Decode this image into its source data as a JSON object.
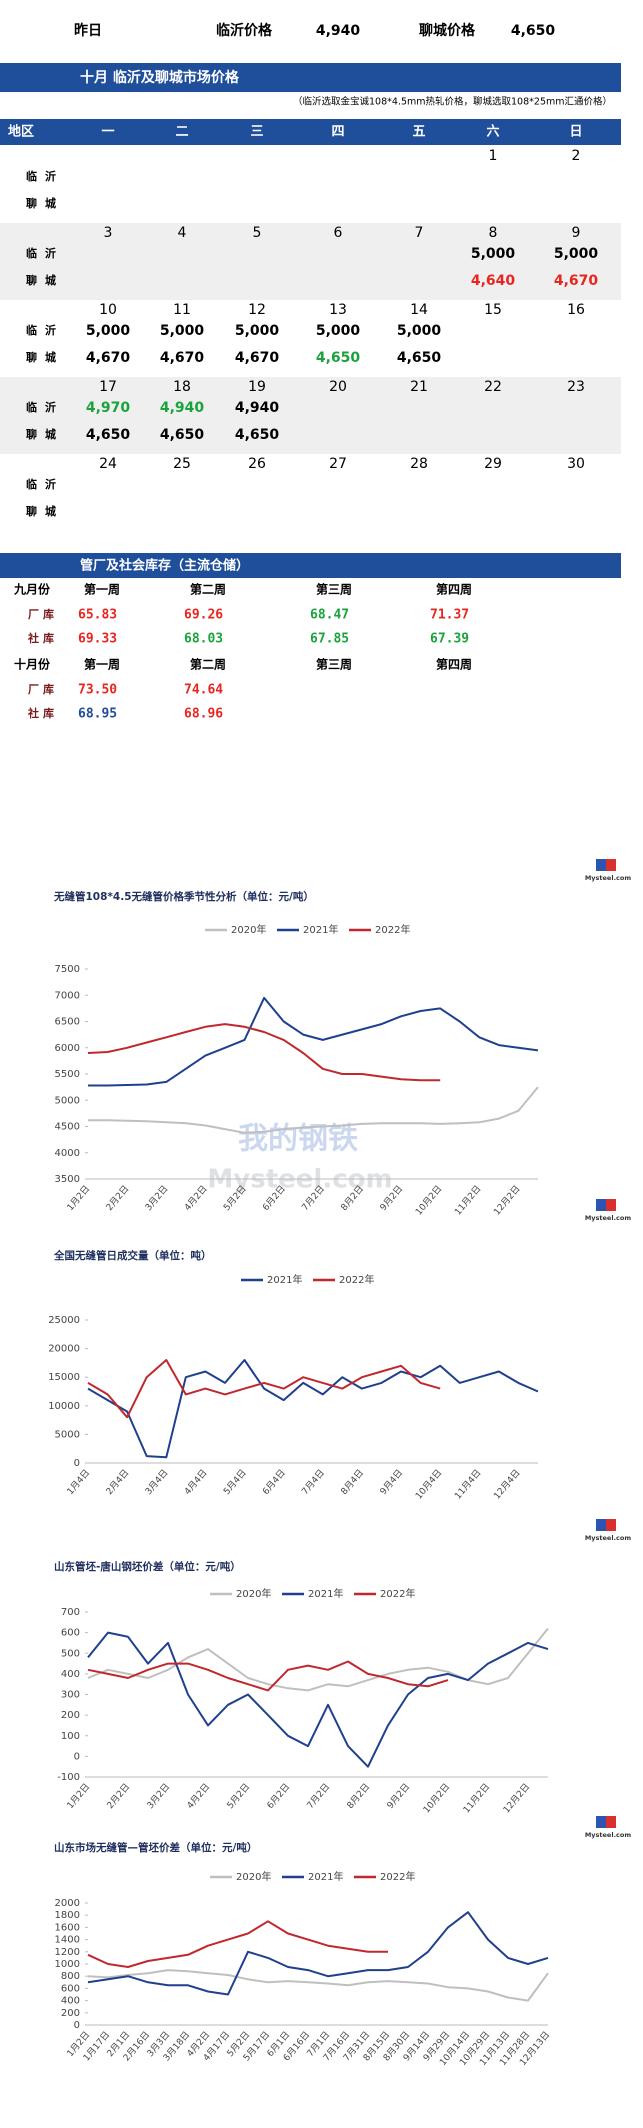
{
  "header": {
    "cells": [
      "昨日",
      "临沂价格",
      "4,940",
      "聊城价格",
      "4,650"
    ]
  },
  "calendar": {
    "title": "十月  临沂及聊城市场价格",
    "note": "（临沂选取金宝诚108*4.5mm热轧价格，聊城选取108*25mm汇通价格）",
    "columns": [
      "地区",
      "一",
      "二",
      "三",
      "四",
      "五",
      "六",
      "日"
    ],
    "weeks": [
      {
        "days": [
          null,
          null,
          null,
          null,
          null,
          1,
          2
        ],
        "rows": [
          {
            "region": "临沂",
            "cells": [
              null,
              null,
              null,
              null,
              null,
              null,
              null
            ]
          },
          {
            "region": "聊城",
            "cells": [
              null,
              null,
              null,
              null,
              null,
              null,
              null
            ]
          }
        ]
      },
      {
        "days": [
          3,
          4,
          5,
          6,
          7,
          8,
          9
        ],
        "rows": [
          {
            "region": "临沂",
            "cells": [
              null,
              null,
              null,
              null,
              null,
              {
                "text": "5,000",
                "color": "#000000"
              },
              {
                "text": "5,000",
                "color": "#000000"
              }
            ]
          },
          {
            "region": "聊城",
            "cells": [
              null,
              null,
              null,
              null,
              null,
              {
                "text": "4,640",
                "color": "#e8251f"
              },
              {
                "text": "4,670",
                "color": "#e8251f"
              }
            ]
          }
        ]
      },
      {
        "days": [
          10,
          11,
          12,
          13,
          14,
          15,
          16
        ],
        "rows": [
          {
            "region": "临沂",
            "cells": [
              {
                "text": "5,000",
                "color": "#000000"
              },
              {
                "text": "5,000",
                "color": "#000000"
              },
              {
                "text": "5,000",
                "color": "#000000"
              },
              {
                "text": "5,000",
                "color": "#000000"
              },
              {
                "text": "5,000",
                "color": "#000000"
              },
              null,
              null
            ]
          },
          {
            "region": "聊城",
            "cells": [
              {
                "text": "4,670",
                "color": "#000000"
              },
              {
                "text": "4,670",
                "color": "#000000"
              },
              {
                "text": "4,670",
                "color": "#000000"
              },
              {
                "text": "4,650",
                "color": "#1aa33c"
              },
              {
                "text": "4,650",
                "color": "#000000"
              },
              null,
              null
            ]
          }
        ]
      },
      {
        "days": [
          17,
          18,
          19,
          20,
          21,
          22,
          23
        ],
        "rows": [
          {
            "region": "临沂",
            "cells": [
              {
                "text": "4,970",
                "color": "#1aa33c"
              },
              {
                "text": "4,940",
                "color": "#1aa33c"
              },
              {
                "text": "4,940",
                "color": "#000000"
              },
              null,
              null,
              null,
              null
            ]
          },
          {
            "region": "聊城",
            "cells": [
              {
                "text": "4,650",
                "color": "#000000"
              },
              {
                "text": "4,650",
                "color": "#000000"
              },
              {
                "text": "4,650",
                "color": "#000000"
              },
              null,
              null,
              null,
              null
            ]
          }
        ]
      },
      {
        "days": [
          24,
          25,
          26,
          27,
          28,
          29,
          30
        ],
        "rows": [
          {
            "region": "临沂",
            "cells": [
              null,
              null,
              null,
              null,
              null,
              null,
              null
            ]
          },
          {
            "region": "聊城",
            "cells": [
              null,
              null,
              null,
              null,
              null,
              null,
              null
            ]
          }
        ]
      }
    ]
  },
  "inventory": {
    "title": "管厂及社会库存（主流仓储）",
    "months": [
      {
        "label": "九月份",
        "weeks": [
          "第一周",
          "第二周",
          "第三周",
          "第四周"
        ],
        "rows": [
          {
            "name": "厂库",
            "cells": [
              {
                "text": "65.83",
                "color": "#e8251f"
              },
              {
                "text": "69.26",
                "color": "#e8251f"
              },
              {
                "text": "68.47",
                "color": "#1aa33c"
              },
              {
                "text": "71.37",
                "color": "#e8251f"
              }
            ]
          },
          {
            "name": "社库",
            "cells": [
              {
                "text": "69.33",
                "color": "#e8251f"
              },
              {
                "text": "68.03",
                "color": "#1aa33c"
              },
              {
                "text": "67.85",
                "color": "#1aa33c"
              },
              {
                "text": "67.39",
                "color": "#1aa33c"
              }
            ]
          }
        ]
      },
      {
        "label": "十月份",
        "weeks": [
          "第一周",
          "第二周",
          "第三周",
          "第四周"
        ],
        "rows": [
          {
            "name": "厂库",
            "cells": [
              {
                "text": "73.50",
                "color": "#e8251f"
              },
              {
                "text": "74.64",
                "color": "#e8251f"
              },
              null,
              null
            ]
          },
          {
            "name": "社库",
            "cells": [
              {
                "text": "68.95",
                "color": "#1f4e9a"
              },
              {
                "text": "68.96",
                "color": "#e8251f"
              },
              null,
              null
            ]
          }
        ]
      }
    ]
  },
  "logo_text": "Mysteel.com",
  "watermark_cn": "我的钢铁",
  "watermark": "Mysteel.com",
  "chart_data": [
    {
      "type": "line",
      "title": "无缝管108*4.5无缝管价格季节性分析（单位：元/吨）",
      "categories": [
        "1月2日",
        null,
        "2月2日",
        null,
        "3月2日",
        null,
        "4月2日",
        null,
        "5月2日",
        null,
        "6月2日",
        null,
        "7月2日",
        null,
        "8月2日",
        null,
        "9月2日",
        null,
        "10月2日",
        null,
        "11月2日",
        null,
        "12月2日",
        null
      ],
      "series": [
        {
          "name": "2020年",
          "color": "#bfbfbf",
          "values": [
            4620,
            4620,
            4610,
            4600,
            4580,
            4560,
            4520,
            4450,
            4380,
            4400,
            4450,
            4480,
            4500,
            4520,
            4550,
            4560,
            4560,
            4560,
            4550,
            4560,
            4580,
            4650,
            4800,
            5250
          ]
        },
        {
          "name": "2021年",
          "color": "#1f3f8f",
          "values": [
            5280,
            5280,
            5290,
            5300,
            5350,
            5600,
            5850,
            6000,
            6150,
            6950,
            6500,
            6250,
            6150,
            6250,
            6350,
            6450,
            6600,
            6700,
            6750,
            6500,
            6200,
            6050,
            6000,
            5950
          ]
        },
        {
          "name": "2022年",
          "color": "#c0282d",
          "values": [
            5900,
            5920,
            6000,
            6100,
            6200,
            6300,
            6400,
            6450,
            6400,
            6300,
            6150,
            5900,
            5600,
            5500,
            5500,
            5450,
            5400,
            5380,
            5380,
            null,
            null,
            null,
            null,
            null
          ]
        }
      ],
      "ylim": [
        3500,
        7500
      ],
      "yticks": [
        3500,
        4000,
        4500,
        5000,
        5500,
        6000,
        6500,
        7000,
        7500
      ]
    },
    {
      "type": "line",
      "title": "全国无缝管日成交量（单位：吨）",
      "categories": [
        "1月4日",
        null,
        "2月4日",
        null,
        "3月4日",
        null,
        "4月4日",
        null,
        "5月4日",
        null,
        "6月4日",
        null,
        "7月4日",
        null,
        "8月4日",
        null,
        "9月4日",
        null,
        "10月4日",
        null,
        "11月4日",
        null,
        "12月4日",
        null
      ],
      "series": [
        {
          "name": "2021年",
          "color": "#1f3f8f",
          "values": [
            13000,
            11000,
            9000,
            1200,
            1000,
            15000,
            16000,
            14000,
            18000,
            13000,
            11000,
            14000,
            12000,
            15000,
            13000,
            14000,
            16000,
            15000,
            17000,
            14000,
            15000,
            16000,
            14000,
            12500
          ]
        },
        {
          "name": "2022年",
          "color": "#c0282d",
          "values": [
            14000,
            12000,
            8000,
            15000,
            18000,
            12000,
            13000,
            12000,
            13000,
            14000,
            13000,
            15000,
            14000,
            13000,
            15000,
            16000,
            17000,
            14000,
            13000,
            null,
            null,
            null,
            null,
            null
          ]
        }
      ],
      "ylim": [
        0,
        25000
      ],
      "yticks": [
        0,
        5000,
        10000,
        15000,
        20000,
        25000
      ]
    },
    {
      "type": "line",
      "title": "山东管坯-唐山钢坯价差（单位：元/吨）",
      "categories": [
        "1月2日",
        null,
        "2月2日",
        null,
        "3月2日",
        null,
        "4月2日",
        null,
        "5月2日",
        null,
        "6月2日",
        null,
        "7月2日",
        null,
        "8月2日",
        null,
        "9月2日",
        null,
        "10月2日",
        null,
        "11月2日",
        null,
        "12月2日",
        null
      ],
      "series": [
        {
          "name": "2020年",
          "color": "#bfbfbf",
          "values": [
            380,
            420,
            400,
            380,
            420,
            480,
            520,
            450,
            380,
            350,
            330,
            320,
            350,
            340,
            370,
            400,
            420,
            430,
            410,
            370,
            350,
            380,
            500,
            620
          ]
        },
        {
          "name": "2021年",
          "color": "#1f3f8f",
          "values": [
            480,
            600,
            580,
            450,
            550,
            300,
            150,
            250,
            300,
            200,
            100,
            50,
            250,
            50,
            -50,
            150,
            300,
            380,
            400,
            370,
            450,
            500,
            550,
            520
          ]
        },
        {
          "name": "2022年",
          "color": "#c0282d",
          "values": [
            420,
            400,
            380,
            420,
            450,
            450,
            420,
            380,
            350,
            320,
            420,
            440,
            420,
            460,
            400,
            380,
            350,
            340,
            370,
            null,
            null,
            null,
            null,
            null
          ]
        }
      ],
      "ylim": [
        -100,
        700
      ],
      "yticks": [
        -100,
        0,
        100,
        200,
        300,
        400,
        500,
        600,
        700
      ]
    },
    {
      "type": "line",
      "title": "山东市场无缝管—管坯价差（单位：元/吨）",
      "categories": [
        "1月2日",
        "1月17日",
        "2月1日",
        "2月16日",
        "3月3日",
        "3月18日",
        "4月2日",
        "4月17日",
        "5月2日",
        "5月17日",
        "6月1日",
        "6月16日",
        "7月1日",
        "7月16日",
        "7月31日",
        "8月15日",
        "8月30日",
        "9月14日",
        "9月29日",
        "10月14日",
        "10月29日",
        "11月13日",
        "11月28日",
        "12月13日"
      ],
      "series": [
        {
          "name": "2020年",
          "color": "#bfbfbf",
          "values": [
            800,
            780,
            820,
            850,
            900,
            880,
            850,
            820,
            750,
            700,
            720,
            700,
            680,
            650,
            700,
            720,
            700,
            680,
            620,
            600,
            550,
            450,
            400,
            850
          ]
        },
        {
          "name": "2021年",
          "color": "#1f3f8f",
          "values": [
            700,
            750,
            800,
            700,
            650,
            650,
            550,
            500,
            1200,
            1100,
            950,
            900,
            800,
            850,
            900,
            900,
            950,
            1200,
            1600,
            1850,
            1400,
            1100,
            1000,
            1100
          ]
        },
        {
          "name": "2022年",
          "color": "#c0282d",
          "values": [
            1150,
            1000,
            950,
            1050,
            1100,
            1150,
            1300,
            1400,
            1500,
            1700,
            1500,
            1400,
            1300,
            1250,
            1200,
            1200,
            null,
            null,
            null,
            null,
            null,
            null,
            null,
            null
          ]
        }
      ],
      "ylim": [
        0,
        2000
      ],
      "yticks": [
        0,
        200,
        400,
        600,
        800,
        1000,
        1200,
        1400,
        1600,
        1800,
        2000
      ]
    }
  ]
}
